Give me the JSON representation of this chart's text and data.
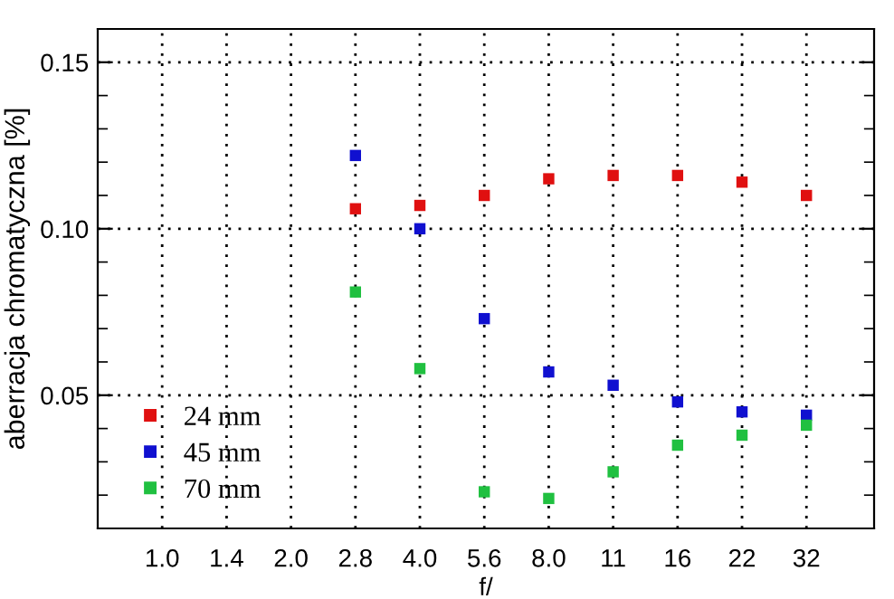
{
  "chart_data": {
    "type": "scatter",
    "xlabel": "f/",
    "ylabel": "aberracja chromatyczna [%]",
    "categories": [
      "1.0",
      "1.4",
      "2.0",
      "2.8",
      "4.0",
      "5.6",
      "8.0",
      "11",
      "16",
      "22",
      "32"
    ],
    "series": [
      {
        "name": "24 mm",
        "color": "#e01010",
        "values": [
          null,
          null,
          null,
          0.106,
          0.107,
          0.11,
          0.115,
          0.116,
          0.116,
          0.114,
          0.11
        ]
      },
      {
        "name": "45 mm",
        "color": "#1010d0",
        "values": [
          null,
          null,
          null,
          0.122,
          0.1,
          0.073,
          0.057,
          0.053,
          0.048,
          0.045,
          0.044
        ]
      },
      {
        "name": "70 mm",
        "color": "#20c040",
        "values": [
          null,
          null,
          null,
          0.081,
          0.058,
          0.021,
          0.019,
          0.027,
          0.035,
          0.038,
          0.041
        ]
      }
    ],
    "ylim": [
      0.01,
      0.16
    ],
    "yticks": [
      {
        "value": 0.02,
        "label": null
      },
      {
        "value": 0.03,
        "label": null
      },
      {
        "value": 0.04,
        "label": null
      },
      0.05,
      {
        "value": 0.06,
        "label": null
      },
      {
        "value": 0.07,
        "label": null
      },
      {
        "value": 0.08,
        "label": null
      },
      {
        "value": 0.09,
        "label": null
      },
      "0.10",
      {
        "value": 0.11,
        "label": null
      },
      {
        "value": 0.12,
        "label": null
      },
      {
        "value": 0.13,
        "label": null
      },
      {
        "value": 0.14,
        "label": null
      },
      0.15
    ],
    "grid": true,
    "legend": "bottom left",
    "marker": "square"
  }
}
